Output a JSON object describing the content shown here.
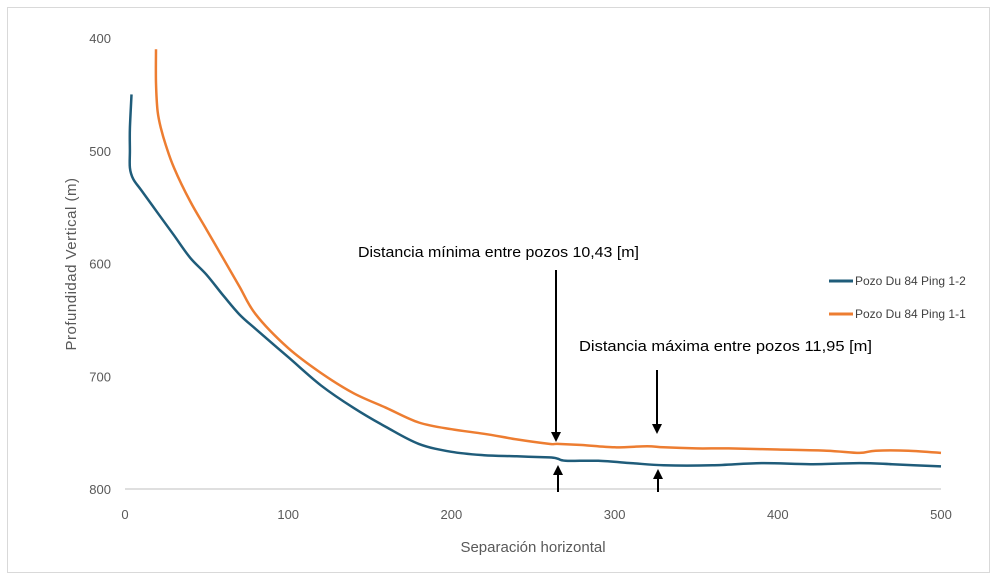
{
  "chart_data": {
    "type": "line",
    "title": "",
    "xlabel": "Separación horizontal",
    "ylabel": "Profundidad Vertical (m)",
    "xlim": [
      0,
      500
    ],
    "ylim": [
      400,
      800
    ],
    "y_inverted": true,
    "xticks": [
      "0",
      "100",
      "200",
      "300",
      "400",
      "500"
    ],
    "yticks": [
      "400",
      "500",
      "600",
      "700",
      "800"
    ],
    "grid": false,
    "legend_position": "right",
    "series": [
      {
        "name": "Pozo Du 84 Ping 1-2",
        "color": "#1f5c7a",
        "x": [
          4,
          3,
          3,
          3,
          5,
          10,
          20,
          30,
          40,
          50,
          60,
          70,
          80,
          100,
          120,
          140,
          160,
          180,
          200,
          220,
          240,
          260,
          265,
          270,
          290,
          310,
          330,
          360,
          390,
          420,
          450,
          470,
          500
        ],
        "y": [
          450,
          480,
          500,
          515,
          525,
          535,
          555,
          575,
          595,
          610,
          628,
          645,
          658,
          683,
          708,
          728,
          745,
          760,
          767,
          770,
          771,
          772,
          773,
          775,
          775,
          777,
          779,
          779,
          777,
          778,
          777,
          778,
          780
        ]
      },
      {
        "name": "Pozo Du 84 Ping 1-1",
        "color": "#ed7d31",
        "x": [
          19,
          19,
          20,
          22,
          25,
          30,
          40,
          50,
          60,
          70,
          80,
          100,
          120,
          140,
          160,
          180,
          200,
          220,
          240,
          260,
          265,
          280,
          300,
          320,
          330,
          350,
          370,
          400,
          430,
          450,
          460,
          480,
          500
        ],
        "y": [
          410,
          440,
          465,
          480,
          495,
          515,
          545,
          570,
          595,
          620,
          645,
          675,
          697,
          715,
          728,
          741,
          747,
          751,
          756,
          760,
          760,
          761,
          763,
          762,
          763,
          764,
          764,
          765,
          766,
          768,
          766,
          766,
          768
        ]
      }
    ],
    "annotations": [
      {
        "text": "Distancia mínima entre pozos 10,43 [m]",
        "x": 265
      },
      {
        "text": "Distancia máxima entre pozos 11,95 [m]",
        "x": 327
      }
    ]
  }
}
